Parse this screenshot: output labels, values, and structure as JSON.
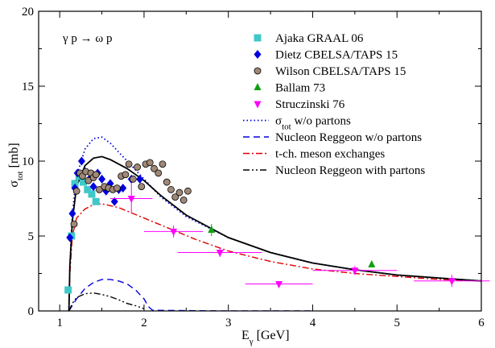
{
  "chart_data": {
    "type": "scatter",
    "annotation": "γ p → ω p",
    "xlabel": "E",
    "xlabel_sub": "γ",
    "xlabel_unit": " [GeV]",
    "ylabel": "σ",
    "ylabel_sub": "tot",
    "ylabel_unit": " [mb]",
    "xlim": [
      0.75,
      6
    ],
    "ylim": [
      0,
      20
    ],
    "x_ticks": [
      1,
      2,
      3,
      4,
      5,
      6
    ],
    "y_ticks": [
      0,
      5,
      10,
      15,
      20
    ],
    "legend_position": "top-right",
    "colors": {
      "ajaka": "#40c8c8",
      "dietz": "#0000e0",
      "wilson": "#a08878",
      "ballam": "#10a010",
      "struczinski": "#ff00ff",
      "sigma_wo": "#0000e0",
      "reggeon_wo": "#0000e0",
      "meson": "#e00000",
      "reggeon_with": "#000000",
      "total": "#000000"
    },
    "series": [
      {
        "key": "ajaka",
        "name": "Ajaka GRAAL 06",
        "marker": "square",
        "points": [
          [
            1.1,
            1.4
          ],
          [
            1.14,
            5.0
          ],
          [
            1.18,
            8.5
          ],
          [
            1.23,
            9.0
          ],
          [
            1.28,
            8.6
          ],
          [
            1.33,
            8.1
          ],
          [
            1.38,
            7.8
          ],
          [
            1.43,
            7.3
          ]
        ]
      },
      {
        "key": "dietz",
        "name": "Dietz CBELSA/TAPS 15",
        "marker": "diamond",
        "points": [
          [
            1.12,
            4.9
          ],
          [
            1.15,
            6.5
          ],
          [
            1.18,
            8.2
          ],
          [
            1.21,
            9.2
          ],
          [
            1.26,
            10.0
          ],
          [
            1.3,
            9.3
          ],
          [
            1.35,
            8.8
          ],
          [
            1.4,
            8.3
          ],
          [
            1.45,
            9.2
          ],
          [
            1.5,
            8.8
          ],
          [
            1.55,
            8.0
          ],
          [
            1.6,
            8.5
          ],
          [
            1.65,
            7.3
          ],
          [
            1.7,
            8.1
          ],
          [
            1.75,
            8.2
          ],
          [
            1.85,
            8.8
          ],
          [
            1.95,
            8.8
          ]
        ]
      },
      {
        "key": "wilson",
        "name": "Wilson CBELSA/TAPS 15",
        "marker": "circle",
        "points": [
          [
            1.17,
            5.8
          ],
          [
            1.2,
            8.0
          ],
          [
            1.24,
            9.2
          ],
          [
            1.27,
            9.0
          ],
          [
            1.31,
            9.3
          ],
          [
            1.34,
            8.7
          ],
          [
            1.37,
            9.2
          ],
          [
            1.4,
            8.9
          ],
          [
            1.43,
            9.1
          ],
          [
            1.47,
            8.1
          ],
          [
            1.53,
            8.3
          ],
          [
            1.58,
            8.2
          ],
          [
            1.63,
            8.1
          ],
          [
            1.68,
            8.2
          ],
          [
            1.73,
            9.0
          ],
          [
            1.78,
            9.1
          ],
          [
            1.82,
            9.8
          ],
          [
            1.87,
            8.8
          ],
          [
            1.92,
            9.6
          ],
          [
            1.97,
            8.3
          ],
          [
            2.02,
            9.8
          ],
          [
            2.07,
            9.9
          ],
          [
            2.12,
            9.5
          ],
          [
            2.17,
            9.2
          ],
          [
            2.22,
            9.8
          ],
          [
            2.27,
            8.6
          ],
          [
            2.32,
            8.1
          ],
          [
            2.37,
            7.6
          ],
          [
            2.42,
            7.9
          ],
          [
            2.47,
            7.4
          ],
          [
            2.52,
            8.0
          ]
        ]
      },
      {
        "key": "ballam",
        "name": "Ballam 73",
        "marker": "triangle-up",
        "points": [
          [
            2.8,
            5.4,
            0.4,
            0
          ],
          [
            4.7,
            3.1,
            0.2,
            0
          ]
        ]
      },
      {
        "key": "struczinski",
        "name": "Struczinski 76",
        "marker": "triangle-down",
        "points": [
          [
            1.85,
            7.5,
            1.0,
            0.25
          ],
          [
            2.35,
            5.3,
            0.4,
            0.35
          ],
          [
            2.9,
            3.9,
            0.3,
            0.5
          ],
          [
            3.6,
            1.8,
            0.2,
            0.4
          ],
          [
            4.5,
            2.7,
            0.3,
            0.5
          ],
          [
            5.65,
            2.0,
            0.4,
            0.45
          ]
        ]
      }
    ],
    "curves": [
      {
        "key": "sigma_wo",
        "name": "σ",
        "name_sub": "tot",
        "name_rest": " w/o partons",
        "dash": "dotted",
        "points": [
          [
            1.109,
            0
          ],
          [
            1.12,
            3.0
          ],
          [
            1.15,
            6.5
          ],
          [
            1.2,
            9.0
          ],
          [
            1.3,
            10.8
          ],
          [
            1.4,
            11.5
          ],
          [
            1.5,
            11.6
          ],
          [
            1.6,
            11.2
          ],
          [
            1.8,
            10.0
          ],
          [
            2.0,
            8.8
          ],
          [
            2.2,
            7.6
          ],
          [
            2.5,
            6.3
          ],
          [
            3.0,
            4.9
          ],
          [
            3.5,
            3.9
          ],
          [
            4.0,
            3.2
          ],
          [
            4.5,
            2.75
          ],
          [
            5.0,
            2.4
          ],
          [
            5.5,
            2.2
          ],
          [
            6.0,
            2.0
          ]
        ]
      },
      {
        "key": "reggeon_wo",
        "name": "Nucleon Reggeon w/o partons",
        "dash": "dashed",
        "points": [
          [
            1.109,
            0
          ],
          [
            1.2,
            0.8
          ],
          [
            1.3,
            1.5
          ],
          [
            1.4,
            1.9
          ],
          [
            1.5,
            2.1
          ],
          [
            1.6,
            2.1
          ],
          [
            1.7,
            2.0
          ],
          [
            1.8,
            1.8
          ],
          [
            1.9,
            1.4
          ],
          [
            2.0,
            0.8
          ],
          [
            2.05,
            0.3
          ],
          [
            2.1,
            0.05
          ],
          [
            2.5,
            0.02
          ],
          [
            3.0,
            0.0
          ],
          [
            4.0,
            0.0
          ]
        ]
      },
      {
        "key": "meson",
        "name": "t-ch. meson exchanges",
        "dash": "dashdot",
        "points": [
          [
            1.109,
            0
          ],
          [
            1.12,
            2.5
          ],
          [
            1.15,
            5.0
          ],
          [
            1.2,
            6.2
          ],
          [
            1.3,
            6.8
          ],
          [
            1.4,
            7.1
          ],
          [
            1.5,
            7.15
          ],
          [
            1.7,
            6.9
          ],
          [
            2.0,
            6.2
          ],
          [
            2.3,
            5.5
          ],
          [
            2.6,
            4.8
          ],
          [
            3.0,
            4.0
          ],
          [
            3.5,
            3.3
          ],
          [
            4.0,
            2.8
          ],
          [
            4.5,
            2.5
          ],
          [
            5.0,
            2.3
          ],
          [
            5.5,
            2.1
          ],
          [
            6.0,
            2.0
          ]
        ]
      },
      {
        "key": "reggeon_with",
        "name": "Nucleon Reggeon with partons",
        "dash": "dashdotdot",
        "points": [
          [
            1.109,
            0
          ],
          [
            1.15,
            0.5
          ],
          [
            1.2,
            0.9
          ],
          [
            1.3,
            1.15
          ],
          [
            1.4,
            1.2
          ],
          [
            1.5,
            1.1
          ],
          [
            1.6,
            0.95
          ],
          [
            1.7,
            0.75
          ],
          [
            1.8,
            0.5
          ],
          [
            1.9,
            0.35
          ],
          [
            2.0,
            0.15
          ]
        ]
      },
      {
        "key": "total",
        "name": "",
        "dash": "solid",
        "points": [
          [
            1.109,
            0
          ],
          [
            1.12,
            3.0
          ],
          [
            1.15,
            6.0
          ],
          [
            1.2,
            8.3
          ],
          [
            1.3,
            9.7
          ],
          [
            1.4,
            10.2
          ],
          [
            1.5,
            10.3
          ],
          [
            1.6,
            10.1
          ],
          [
            1.8,
            9.5
          ],
          [
            2.0,
            8.7
          ],
          [
            2.2,
            7.7
          ],
          [
            2.5,
            6.4
          ],
          [
            3.0,
            4.9
          ],
          [
            3.5,
            3.9
          ],
          [
            4.0,
            3.2
          ],
          [
            4.5,
            2.75
          ],
          [
            5.0,
            2.4
          ],
          [
            5.5,
            2.2
          ],
          [
            6.0,
            2.0
          ]
        ]
      }
    ]
  }
}
